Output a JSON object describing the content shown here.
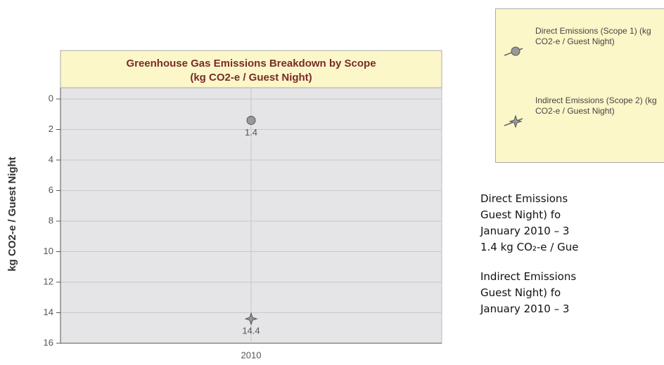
{
  "chart_data": {
    "type": "scatter",
    "title": "Greenhouse Gas Emissions Breakdown by Scope",
    "subtitle": "(kg CO2-e / Guest Night)",
    "y_label": "kg CO2-e / Guest Night",
    "categories": [
      "2010"
    ],
    "series": [
      {
        "name": "Direct Emissions (Scope 1) (kg CO2-e / Guest Night)",
        "color": "#999999",
        "marker": "circle",
        "values": [
          1.4
        ]
      },
      {
        "name": "Indirect Emissions (Scope 2) (kg CO2-e / Guest Night)",
        "color": "#999999",
        "marker": "star",
        "values": [
          14.4
        ]
      }
    ],
    "ylim": [
      0,
      16
    ],
    "yticks": [
      0,
      2,
      4,
      6,
      8,
      10,
      12,
      14,
      16
    ],
    "y_inverted": true,
    "grid": true
  },
  "notes": [
    {
      "lines": [
        "Direct Emissions",
        "Guest Night) fo",
        "January 2010 – 3",
        "1.4 kg CO₂-e / Gue"
      ]
    },
    {
      "lines": [
        "Indirect Emissions",
        "Guest Night) fo",
        "January 2010 – 3"
      ]
    }
  ]
}
